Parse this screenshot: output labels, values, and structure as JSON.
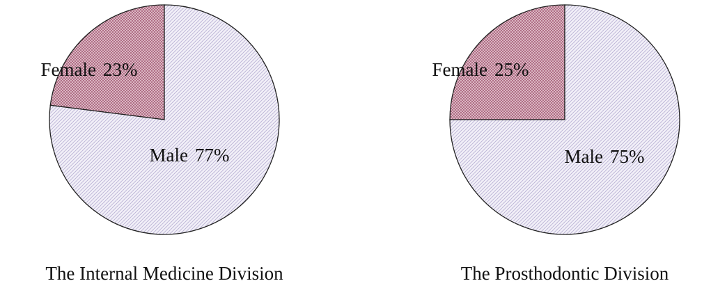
{
  "chart_data": [
    {
      "type": "pie",
      "title": "The Internal Medicine Division",
      "categories": [
        "Female",
        "Male"
      ],
      "values": [
        23,
        77
      ],
      "value_labels": [
        "23%",
        "77%"
      ],
      "colors": [
        "#c8909f",
        "#dcd6ee"
      ]
    },
    {
      "type": "pie",
      "title": "The Prosthodontic Division",
      "categories": [
        "Female",
        "Male"
      ],
      "values": [
        25,
        75
      ],
      "value_labels": [
        "25%",
        "75%"
      ],
      "colors": [
        "#c8909f",
        "#dcd6ee"
      ]
    }
  ]
}
